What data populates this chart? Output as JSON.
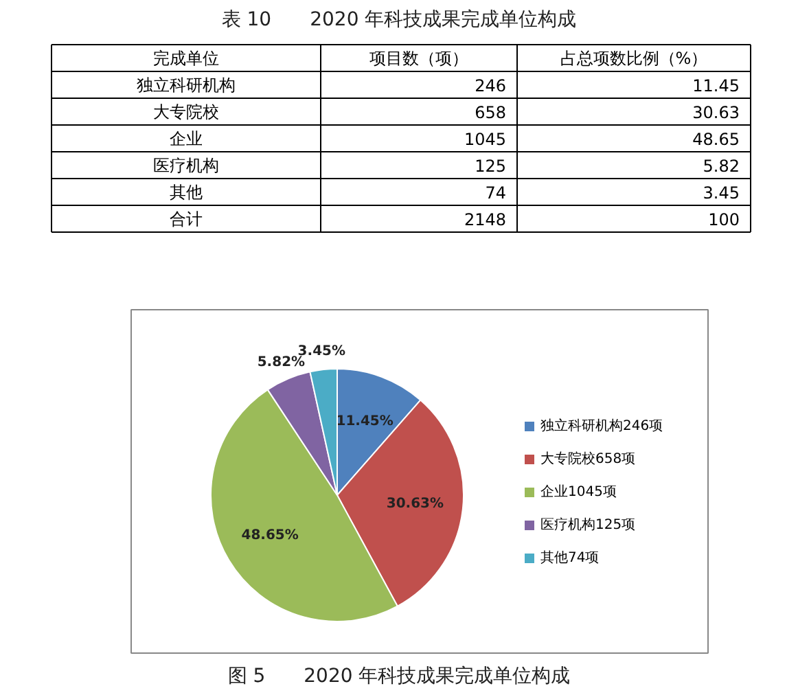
{
  "chart_data": [
    {
      "type": "other",
      "title": "表 10　　2020 年科技成果完成单位构成",
      "annotations": [
        "完成单位",
        "项目数（项）",
        "占总项数比例（%）",
        "独立科研机构",
        "246",
        "11.45",
        "大专院校",
        "658",
        "30.63",
        "企业",
        "1045",
        "48.65",
        "医疗机构",
        "125",
        "5.82",
        "其他",
        "74",
        "3.45",
        "合计",
        "2148",
        "100"
      ]
    },
    {
      "type": "pie",
      "title": "图 5　　2020 年科技成果完成单位构成",
      "categories": [
        "独立科研机构246项",
        "大专院校658项",
        "企业1045项",
        "医疗机构125项",
        "其他74项"
      ],
      "values": [
        11.45,
        30.63,
        48.65,
        5.82,
        3.45
      ],
      "colors": [
        "#4f81bd",
        "#c0504d",
        "#9bbb59",
        "#8064a2",
        "#4bacc6"
      ],
      "value_labels": [
        "11.45%",
        "30.63%",
        "48.65%",
        "5.82%",
        "3.45%"
      ],
      "legend": "right"
    }
  ]
}
